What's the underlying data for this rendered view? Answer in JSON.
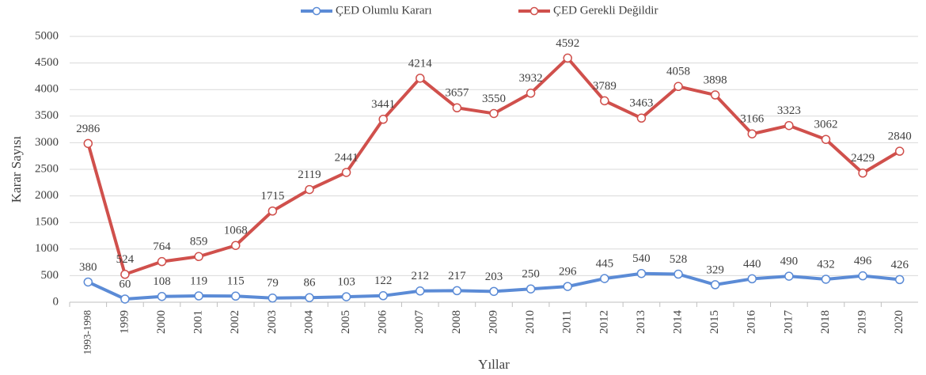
{
  "chart_data": {
    "type": "line",
    "categories": [
      "1993-1998",
      "1999",
      "2000",
      "2001",
      "2002",
      "2003",
      "2004",
      "2005",
      "2006",
      "2007",
      "2008",
      "2009",
      "2010",
      "2011",
      "2012",
      "2013",
      "2014",
      "2015",
      "2016",
      "2017",
      "2018",
      "2019",
      "2020"
    ],
    "series": [
      {
        "name": "ÇED Olumlu Kararı",
        "color": "#5b8bd6",
        "values": [
          380,
          60,
          108,
          119,
          115,
          79,
          86,
          103,
          122,
          212,
          217,
          203,
          250,
          296,
          445,
          540,
          528,
          329,
          440,
          490,
          432,
          496,
          426
        ]
      },
      {
        "name": "ÇED Gerekli Değildir",
        "color": "#d0504c",
        "values": [
          2986,
          524,
          764,
          859,
          1068,
          1715,
          2119,
          2441,
          3441,
          4214,
          3657,
          3550,
          3932,
          4592,
          3789,
          3463,
          4058,
          3898,
          3166,
          3323,
          3062,
          2429,
          2840
        ]
      }
    ],
    "xlabel": "Yıllar",
    "ylabel": "Karar Sayısı",
    "ylim": [
      0,
      5000
    ],
    "yticks": [
      0,
      500,
      1000,
      1500,
      2000,
      2500,
      3000,
      3500,
      4000,
      4500,
      5000
    ],
    "grid": true,
    "legend": "top"
  }
}
